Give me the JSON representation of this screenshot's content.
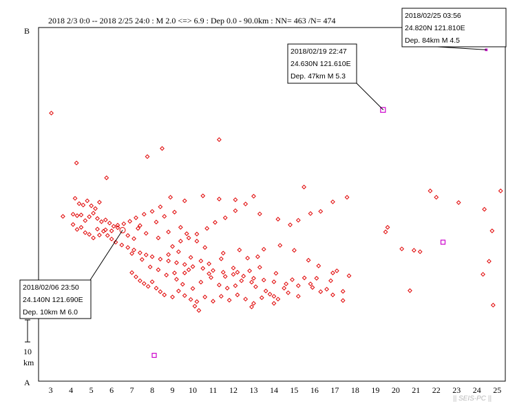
{
  "header": "2018 2/3 0:0 -- 2018 2/25 24:0  : M 2.0 <=> 6.9   :  Dep 0.0 - 90.0km :  NN= 463 /N= 474",
  "corner_top": "B",
  "corner_bottom": "A",
  "scale_value": "10",
  "scale_unit": "km",
  "watermark": "|| SEIS-PC ||",
  "colors": {
    "quake": "#e00000",
    "highlight": "#cc00cc",
    "frame": "#000000"
  },
  "callouts": [
    {
      "lines": [
        "2018/02/25 03:56",
        "24.820N   121.810E",
        "Dep. 84km    M 4.5"
      ]
    },
    {
      "lines": [
        "2018/02/19 22:47",
        "24.630N   121.610E",
        "Dep. 47km    M 5.3"
      ]
    },
    {
      "lines": [
        "2018/02/06 23:50",
        "24.140N   121.690E",
        "Dep. 10km    M 6.0"
      ]
    }
  ],
  "chart_data": {
    "type": "scatter",
    "xlim": [
      2.4,
      25.4
    ],
    "ylim": [
      0,
      100
    ],
    "x_ticks": [
      "3",
      "4",
      "5",
      "6",
      "7",
      "8",
      "9",
      "10",
      "11",
      "12",
      "13",
      "14",
      "15",
      "16",
      "17",
      "18",
      "19",
      "20",
      "21",
      "22",
      "23",
      "24",
      "25"
    ],
    "highlighted": [
      {
        "x": 24.48,
        "y": 93.7,
        "m": 4.5,
        "callout": 0
      },
      {
        "x": 19.39,
        "y": 76.7,
        "m": 5.3,
        "callout": 1
      },
      {
        "x": 6.54,
        "y": 42.7,
        "m": 6.0,
        "callout": 2
      }
    ],
    "extra_squares": [
      {
        "x": 22.33,
        "y": 39.3
      },
      {
        "x": 8.1,
        "y": 7.3
      }
    ],
    "points": [
      [
        3.03,
        75.8
      ],
      [
        4.27,
        61.7
      ],
      [
        5.75,
        57.5
      ],
      [
        8.49,
        65.8
      ],
      [
        7.76,
        63.5
      ],
      [
        11.3,
        68.3
      ],
      [
        15.48,
        54.9
      ],
      [
        21.7,
        53.8
      ],
      [
        25.17,
        53.8
      ],
      [
        24.37,
        48.6
      ],
      [
        3.6,
        46.6
      ],
      [
        4.1,
        47.2
      ],
      [
        4.3,
        46.8
      ],
      [
        4.5,
        47.0
      ],
      [
        4.7,
        45.4
      ],
      [
        4.9,
        46.5
      ],
      [
        5.1,
        47.5
      ],
      [
        5.3,
        46.0
      ],
      [
        5.5,
        45.1
      ],
      [
        5.7,
        45.6
      ],
      [
        5.9,
        44.7
      ],
      [
        6.1,
        43.8
      ],
      [
        6.3,
        44.1
      ],
      [
        4.2,
        51.7
      ],
      [
        4.4,
        50.2
      ],
      [
        4.6,
        49.8
      ],
      [
        4.8,
        51.0
      ],
      [
        5.0,
        49.6
      ],
      [
        5.2,
        48.8
      ],
      [
        5.4,
        50.6
      ],
      [
        4.1,
        44.3
      ],
      [
        4.3,
        42.9
      ],
      [
        4.5,
        43.5
      ],
      [
        4.7,
        42.0
      ],
      [
        4.9,
        41.5
      ],
      [
        5.3,
        43.0
      ],
      [
        5.6,
        42.4
      ],
      [
        5.8,
        41.2
      ],
      [
        6.0,
        40.2
      ],
      [
        6.2,
        39.3
      ],
      [
        6.5,
        38.5
      ],
      [
        6.8,
        37.8
      ],
      [
        7.1,
        37.1
      ],
      [
        7.4,
        36.3
      ],
      [
        7.7,
        35.7
      ],
      [
        8.0,
        35.2
      ],
      [
        8.4,
        34.5
      ],
      [
        8.8,
        34.0
      ],
      [
        9.2,
        33.5
      ],
      [
        9.6,
        33.0
      ],
      [
        10.0,
        32.4
      ],
      [
        10.5,
        31.9
      ],
      [
        11.0,
        31.3
      ],
      [
        11.5,
        30.8
      ],
      [
        12.0,
        30.2
      ],
      [
        12.5,
        29.7
      ],
      [
        13.0,
        29.1
      ],
      [
        13.5,
        28.6
      ],
      [
        14.0,
        28.1
      ],
      [
        14.6,
        27.5
      ],
      [
        15.2,
        27.0
      ],
      [
        15.9,
        26.5
      ],
      [
        16.6,
        26.0
      ],
      [
        17.4,
        25.4
      ],
      [
        7.0,
        30.7
      ],
      [
        7.2,
        29.5
      ],
      [
        7.4,
        28.4
      ],
      [
        7.6,
        27.6
      ],
      [
        7.8,
        26.8
      ],
      [
        8.0,
        28.1
      ],
      [
        8.2,
        26.3
      ],
      [
        8.4,
        25.3
      ],
      [
        8.6,
        24.4
      ],
      [
        9.0,
        23.8
      ],
      [
        9.3,
        25.5
      ],
      [
        9.6,
        24.2
      ],
      [
        9.9,
        23.1
      ],
      [
        10.2,
        22.5
      ],
      [
        10.6,
        23.8
      ],
      [
        11.0,
        22.6
      ],
      [
        11.4,
        24.0
      ],
      [
        11.8,
        22.9
      ],
      [
        12.2,
        24.4
      ],
      [
        12.6,
        23.2
      ],
      [
        13.0,
        22.0
      ],
      [
        13.4,
        23.6
      ],
      [
        13.8,
        24.6
      ],
      [
        14.2,
        23.2
      ],
      [
        14.7,
        25.0
      ],
      [
        15.2,
        24.0
      ],
      [
        15.8,
        27.5
      ],
      [
        16.3,
        25.3
      ],
      [
        16.9,
        24.4
      ],
      [
        17.4,
        22.8
      ],
      [
        10.1,
        21.2
      ],
      [
        10.3,
        20.0
      ],
      [
        12.9,
        21.0
      ],
      [
        14.0,
        22.0
      ],
      [
        9.6,
        30.6
      ],
      [
        10.8,
        33.2
      ],
      [
        11.4,
        34.6
      ],
      [
        12.0,
        32.0
      ],
      [
        12.7,
        34.8
      ],
      [
        13.5,
        37.3
      ],
      [
        14.3,
        38.4
      ],
      [
        15.0,
        37.0
      ],
      [
        15.7,
        34.2
      ],
      [
        16.2,
        32.6
      ],
      [
        16.9,
        30.6
      ],
      [
        9.0,
        38.1
      ],
      [
        9.4,
        39.6
      ],
      [
        9.8,
        40.5
      ],
      [
        10.2,
        41.6
      ],
      [
        10.7,
        43.2
      ],
      [
        11.1,
        44.9
      ],
      [
        11.6,
        46.2
      ],
      [
        12.1,
        48.2
      ],
      [
        12.6,
        50.1
      ],
      [
        13.3,
        47.3
      ],
      [
        14.2,
        45.8
      ],
      [
        14.8,
        44.2
      ],
      [
        15.2,
        45.5
      ],
      [
        15.8,
        47.4
      ],
      [
        16.3,
        48.0
      ],
      [
        16.9,
        50.7
      ],
      [
        17.6,
        52.0
      ],
      [
        13.0,
        52.3
      ],
      [
        11.3,
        51.5
      ],
      [
        12.1,
        51.3
      ],
      [
        10.5,
        52.4
      ],
      [
        9.6,
        51.0
      ],
      [
        8.9,
        52.0
      ],
      [
        8.4,
        49.3
      ],
      [
        8.0,
        48.0
      ],
      [
        7.6,
        47.2
      ],
      [
        7.2,
        46.2
      ],
      [
        6.9,
        45.2
      ],
      [
        6.6,
        44.5
      ],
      [
        6.3,
        43.4
      ],
      [
        6.0,
        42.5
      ],
      [
        5.7,
        42.8
      ],
      [
        5.4,
        41.3
      ],
      [
        5.1,
        40.5
      ],
      [
        19.6,
        43.5
      ],
      [
        19.5,
        42.2
      ],
      [
        20.3,
        37.4
      ],
      [
        20.9,
        37.0
      ],
      [
        21.2,
        36.6
      ],
      [
        20.7,
        25.6
      ],
      [
        24.3,
        30.2
      ],
      [
        24.6,
        33.9
      ],
      [
        24.75,
        42.5
      ],
      [
        24.8,
        21.5
      ],
      [
        22.0,
        52.0
      ],
      [
        23.1,
        50.5
      ],
      [
        8.2,
        45.0
      ],
      [
        8.6,
        46.6
      ],
      [
        9.1,
        47.8
      ],
      [
        9.4,
        43.5
      ],
      [
        8.8,
        42.2
      ],
      [
        9.7,
        41.7
      ],
      [
        10.2,
        39.6
      ],
      [
        10.6,
        37.8
      ],
      [
        7.4,
        44.0
      ],
      [
        7.7,
        41.8
      ],
      [
        8.3,
        40.5
      ],
      [
        7.1,
        40.3
      ],
      [
        7.3,
        43.2
      ],
      [
        6.8,
        41.2
      ],
      [
        7.0,
        36.1
      ],
      [
        7.5,
        34.4
      ],
      [
        7.9,
        32.3
      ],
      [
        8.3,
        31.5
      ],
      [
        8.7,
        30.0
      ],
      [
        9.2,
        28.8
      ],
      [
        9.5,
        27.4
      ],
      [
        10.0,
        26.2
      ],
      [
        10.4,
        28.0
      ],
      [
        10.9,
        29.3
      ],
      [
        11.3,
        27.2
      ],
      [
        11.7,
        26.3
      ],
      [
        12.1,
        27.0
      ],
      [
        12.4,
        28.4
      ],
      [
        12.9,
        28.0
      ],
      [
        13.1,
        26.7
      ],
      [
        13.6,
        25.5
      ],
      [
        14.0,
        24.0
      ],
      [
        14.5,
        26.3
      ],
      [
        14.9,
        28.7
      ],
      [
        8.8,
        35.8
      ],
      [
        9.3,
        36.6
      ],
      [
        9.9,
        35.0
      ],
      [
        10.4,
        34.0
      ],
      [
        11.5,
        36.2
      ],
      [
        12.3,
        37.1
      ],
      [
        13.2,
        35.2
      ],
      [
        9.1,
        30.6
      ],
      [
        9.8,
        31.5
      ],
      [
        10.8,
        30.4
      ],
      [
        11.6,
        29.6
      ],
      [
        12.2,
        30.8
      ],
      [
        12.8,
        31.2
      ],
      [
        13.3,
        32.2
      ],
      [
        14.1,
        30.5
      ],
      [
        15.5,
        29.2
      ],
      [
        16.1,
        29.1
      ],
      [
        16.8,
        28.4
      ],
      [
        17.1,
        31.2
      ],
      [
        17.7,
        29.8
      ]
    ]
  }
}
